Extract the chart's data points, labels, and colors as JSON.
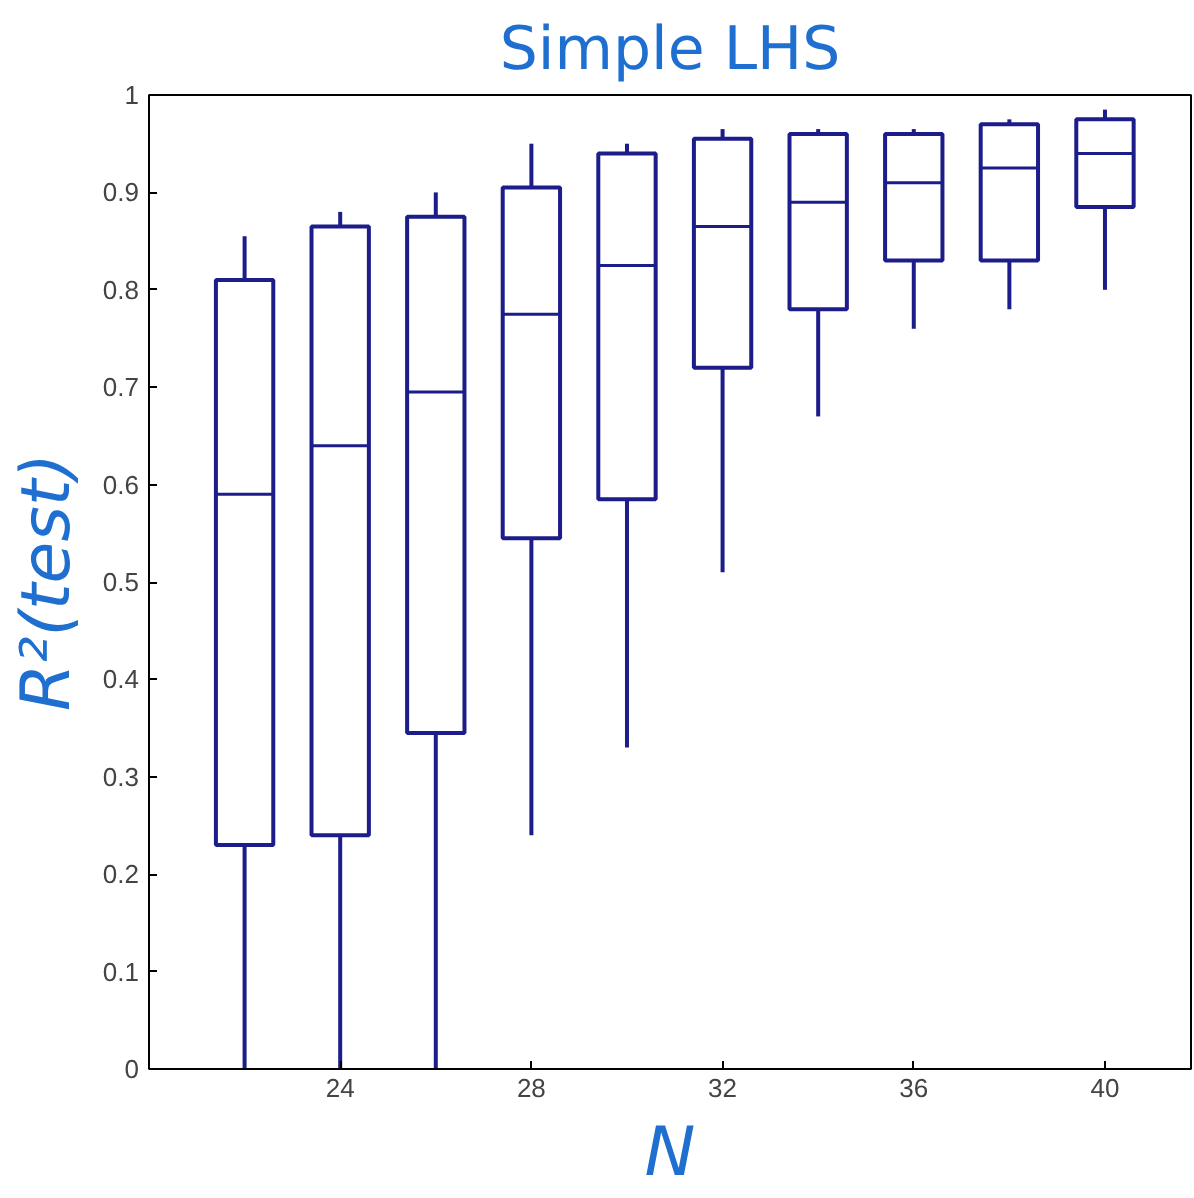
{
  "chart_data": {
    "type": "box",
    "title": "Simple LHS",
    "xlabel": "N",
    "ylabel": "R²(test)",
    "x": [
      22,
      24,
      26,
      28,
      30,
      32,
      34,
      36,
      38,
      40
    ],
    "xlim": [
      20,
      41.8
    ],
    "xticks": [
      24,
      28,
      32,
      36,
      40
    ],
    "ylim": [
      0,
      1
    ],
    "yticks": [
      0,
      0.1,
      0.2,
      0.3,
      0.4,
      0.5,
      0.6,
      0.7,
      0.8,
      0.9,
      1
    ],
    "color": "#1c1c8a",
    "grid": false,
    "boxes": [
      {
        "low": 0,
        "q1": 0.23,
        "median": 0.59,
        "q3": 0.81,
        "high": 0.855
      },
      {
        "low": 0,
        "q1": 0.24,
        "median": 0.64,
        "q3": 0.865,
        "high": 0.88
      },
      {
        "low": 0,
        "q1": 0.345,
        "median": 0.695,
        "q3": 0.875,
        "high": 0.9
      },
      {
        "low": 0.24,
        "q1": 0.545,
        "median": 0.775,
        "q3": 0.905,
        "high": 0.95
      },
      {
        "low": 0.33,
        "q1": 0.585,
        "median": 0.825,
        "q3": 0.94,
        "high": 0.95
      },
      {
        "low": 0.51,
        "q1": 0.72,
        "median": 0.865,
        "q3": 0.955,
        "high": 0.965
      },
      {
        "low": 0.67,
        "q1": 0.78,
        "median": 0.89,
        "q3": 0.96,
        "high": 0.965
      },
      {
        "low": 0.76,
        "q1": 0.83,
        "median": 0.91,
        "q3": 0.96,
        "high": 0.965
      },
      {
        "low": 0.78,
        "q1": 0.83,
        "median": 0.925,
        "q3": 0.97,
        "high": 0.975
      },
      {
        "low": 0.8,
        "q1": 0.885,
        "median": 0.94,
        "q3": 0.975,
        "high": 0.985
      }
    ]
  }
}
